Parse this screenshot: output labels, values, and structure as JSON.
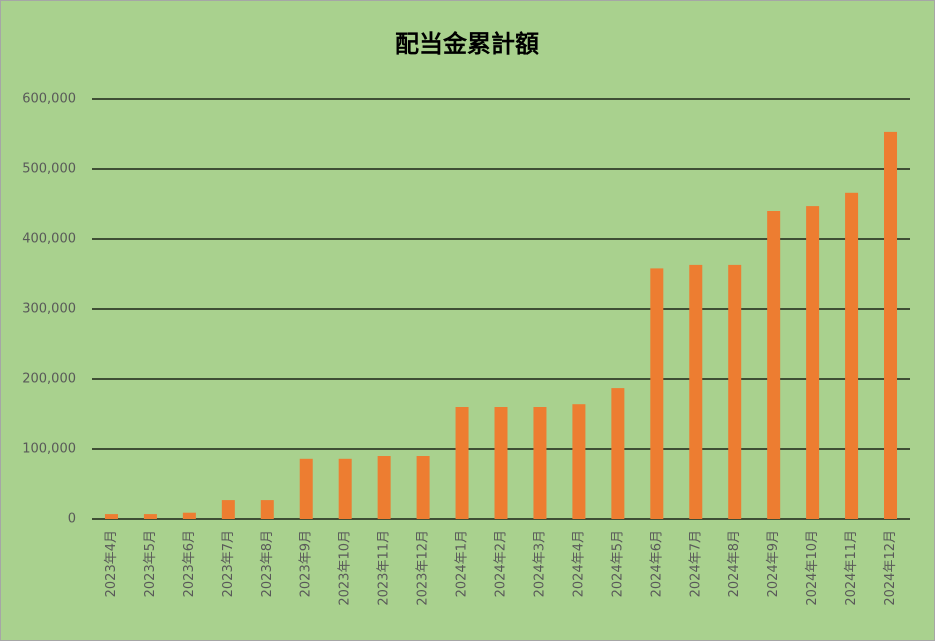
{
  "chart_data": {
    "type": "bar",
    "title": "配当金累計額",
    "categories": [
      "2023年4月",
      "2023年5月",
      "2023年6月",
      "2023年7月",
      "2023年8月",
      "2023年9月",
      "2023年10月",
      "2023年11月",
      "2023年12月",
      "2024年1月",
      "2024年2月",
      "2024年3月",
      "2024年4月",
      "2024年5月",
      "2024年6月",
      "2024年7月",
      "2024年8月",
      "2024年9月",
      "2024年10月",
      "2024年11月",
      "2024年12月"
    ],
    "values": [
      7000,
      7000,
      9000,
      27000,
      27000,
      86000,
      86000,
      90000,
      90000,
      160000,
      160000,
      160000,
      164000,
      187000,
      358000,
      363000,
      363000,
      440000,
      447000,
      466000,
      553000
    ],
    "color": "#ed7d31",
    "ylim": [
      0,
      600000
    ],
    "yticks": [
      0,
      {
        "value": 100000,
        "label": "100,000"
      },
      {
        "value": 200000,
        "label": "200,000"
      },
      {
        "value": 300000,
        "label": "300,000"
      },
      {
        "value": 400000,
        "label": "400,000"
      },
      {
        "value": 500000,
        "label": "500,000"
      },
      {
        "value": 600000,
        "label": "600,000"
      }
    ],
    "grid": true
  }
}
